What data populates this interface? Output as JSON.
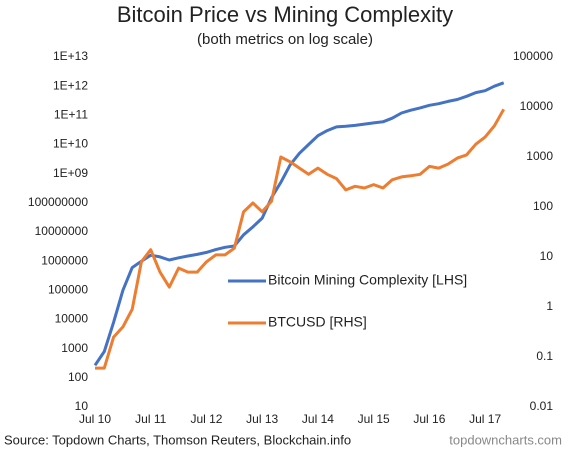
{
  "chart_data": {
    "type": "line",
    "title": "Bitcoin Price vs Mining Complexity",
    "subtitle": "(both metrics on log scale)",
    "source": "Source: Topdown Charts, Thomson Reuters, Blockchain.info",
    "watermark": "topdowncharts.com",
    "log_scale": true,
    "grid": false,
    "legend": "center",
    "x": [
      "2010-07",
      "2010-09",
      "2010-11",
      "2011-01",
      "2011-03",
      "2011-05",
      "2011-07",
      "2011-09",
      "2011-11",
      "2012-01",
      "2012-03",
      "2012-05",
      "2012-07",
      "2012-09",
      "2012-11",
      "2013-01",
      "2013-03",
      "2013-05",
      "2013-07",
      "2013-09",
      "2013-11",
      "2014-01",
      "2014-03",
      "2014-05",
      "2014-07",
      "2014-09",
      "2014-11",
      "2015-01",
      "2015-03",
      "2015-05",
      "2015-07",
      "2015-09",
      "2015-11",
      "2016-01",
      "2016-03",
      "2016-05",
      "2016-07",
      "2016-09",
      "2016-11",
      "2017-01",
      "2017-03",
      "2017-05",
      "2017-07",
      "2017-09",
      "2017-11"
    ],
    "xlim": [
      "2010-07",
      "2018-01"
    ],
    "xticks": [
      {
        "value": "2010-07",
        "label": "Jul 10"
      },
      {
        "value": "2011-07",
        "label": "Jul 11"
      },
      {
        "value": "2012-07",
        "label": "Jul 12"
      },
      {
        "value": "2013-07",
        "label": "Jul 13"
      },
      {
        "value": "2014-07",
        "label": "Jul 14"
      },
      {
        "value": "2015-07",
        "label": "Jul 15"
      },
      {
        "value": "2016-07",
        "label": "Jul 16"
      },
      {
        "value": "2017-07",
        "label": "Jul 17"
      }
    ],
    "ylim": [
      10,
      10000000000000
    ],
    "yticks": [
      10,
      100,
      1000,
      10000,
      100000,
      1000000,
      10000000,
      100000000,
      {
        "value": 1000000000,
        "label": "1E+09"
      },
      {
        "value": 10000000000,
        "label": "1E+10"
      },
      {
        "value": 100000000000,
        "label": "1E+11"
      },
      {
        "value": 1000000000000,
        "label": "1E+12"
      },
      {
        "value": 10000000000000,
        "label": "1E+13"
      }
    ],
    "y2lim": [
      0.01,
      100000
    ],
    "y2ticks": [
      0.01,
      0.1,
      1,
      10,
      100,
      1000,
      10000,
      100000
    ],
    "series": [
      {
        "name": "Bitcoin Mining Complexity [LHS]",
        "color": "#4472c4",
        "axis": "y",
        "values": [
          270,
          800,
          8000,
          100000,
          600000,
          1000000,
          1600000,
          1400000,
          1100000,
          1300000,
          1500000,
          1700000,
          2000000,
          2500000,
          3000000,
          3300000,
          8000000,
          15000000,
          30000000,
          150000000,
          500000000,
          2000000000,
          5000000000,
          10000000000,
          20000000000,
          30000000000,
          40000000000,
          42000000000,
          45000000000,
          50000000000,
          55000000000,
          60000000000,
          80000000000,
          120000000000,
          150000000000,
          180000000000,
          220000000000,
          250000000000,
          300000000000,
          350000000000,
          450000000000,
          600000000000,
          700000000000,
          1000000000000,
          1300000000000
        ]
      },
      {
        "name": "BTCUSD [RHS]",
        "color": "#ed7d31",
        "axis": "y2",
        "values": [
          0.06,
          0.06,
          0.25,
          0.4,
          0.9,
          8,
          14,
          5,
          2.5,
          6,
          5,
          5,
          8,
          11,
          11,
          15,
          80,
          120,
          80,
          130,
          1000,
          800,
          600,
          450,
          600,
          450,
          370,
          220,
          260,
          240,
          280,
          240,
          350,
          400,
          420,
          450,
          650,
          600,
          720,
          950,
          1100,
          1800,
          2500,
          4200,
          9000
        ]
      }
    ]
  }
}
